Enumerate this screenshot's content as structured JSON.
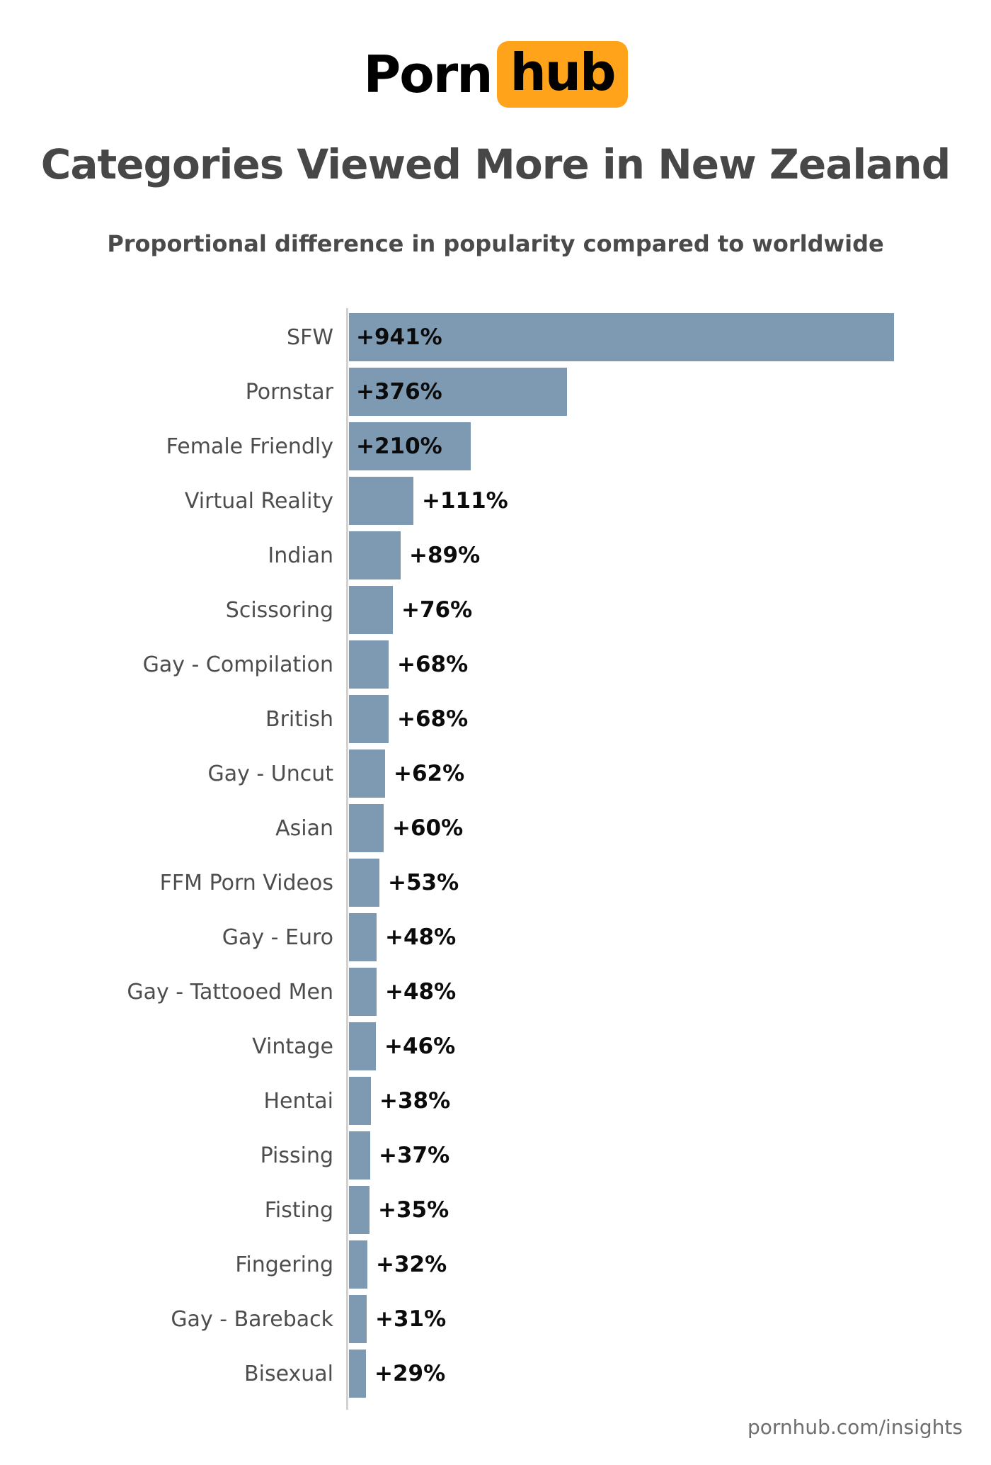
{
  "logo": {
    "part1": "Porn",
    "part2": "hub",
    "orange": "#ffa31a"
  },
  "header": {
    "title": "Categories Viewed More in New Zealand",
    "subtitle": "Proportional difference in popularity compared to worldwide"
  },
  "chart_data": {
    "type": "bar",
    "orientation": "horizontal",
    "title": "Categories Viewed More in New Zealand",
    "subtitle": "Proportional difference in popularity compared to worldwide",
    "categories": [
      "SFW",
      "Pornstar",
      "Female Friendly",
      "Virtual Reality",
      "Indian",
      "Scissoring",
      "Gay - Compilation",
      "British",
      "Gay - Uncut",
      "Asian",
      "FFM Porn Videos",
      "Gay - Euro",
      "Gay - Tattooed Men",
      "Vintage",
      "Hentai",
      "Pissing",
      "Fisting",
      "Fingering",
      "Gay - Bareback",
      "Bisexual"
    ],
    "values": [
      941,
      376,
      210,
      111,
      89,
      76,
      68,
      68,
      62,
      60,
      53,
      48,
      48,
      46,
      38,
      37,
      35,
      32,
      31,
      29
    ],
    "value_labels": [
      "+941%",
      "+376%",
      "+210%",
      "+111%",
      "+89%",
      "+76%",
      "+68%",
      "+68%",
      "+62%",
      "+60%",
      "+53%",
      "+48%",
      "+48%",
      "+46%",
      "+38%",
      "+37%",
      "+35%",
      "+32%",
      "+31%",
      "+29%"
    ],
    "xlim": [
      0,
      941
    ],
    "grid": false,
    "value_axis_visible": false,
    "legend": "none",
    "bar_color": "#7e9ab2",
    "axis_line_color": "#d2d2d2",
    "value_label_color": "#0b0b0b",
    "category_label_color": "#4d4d4d"
  },
  "footer": {
    "site_label": "pornhub.com/insights"
  }
}
